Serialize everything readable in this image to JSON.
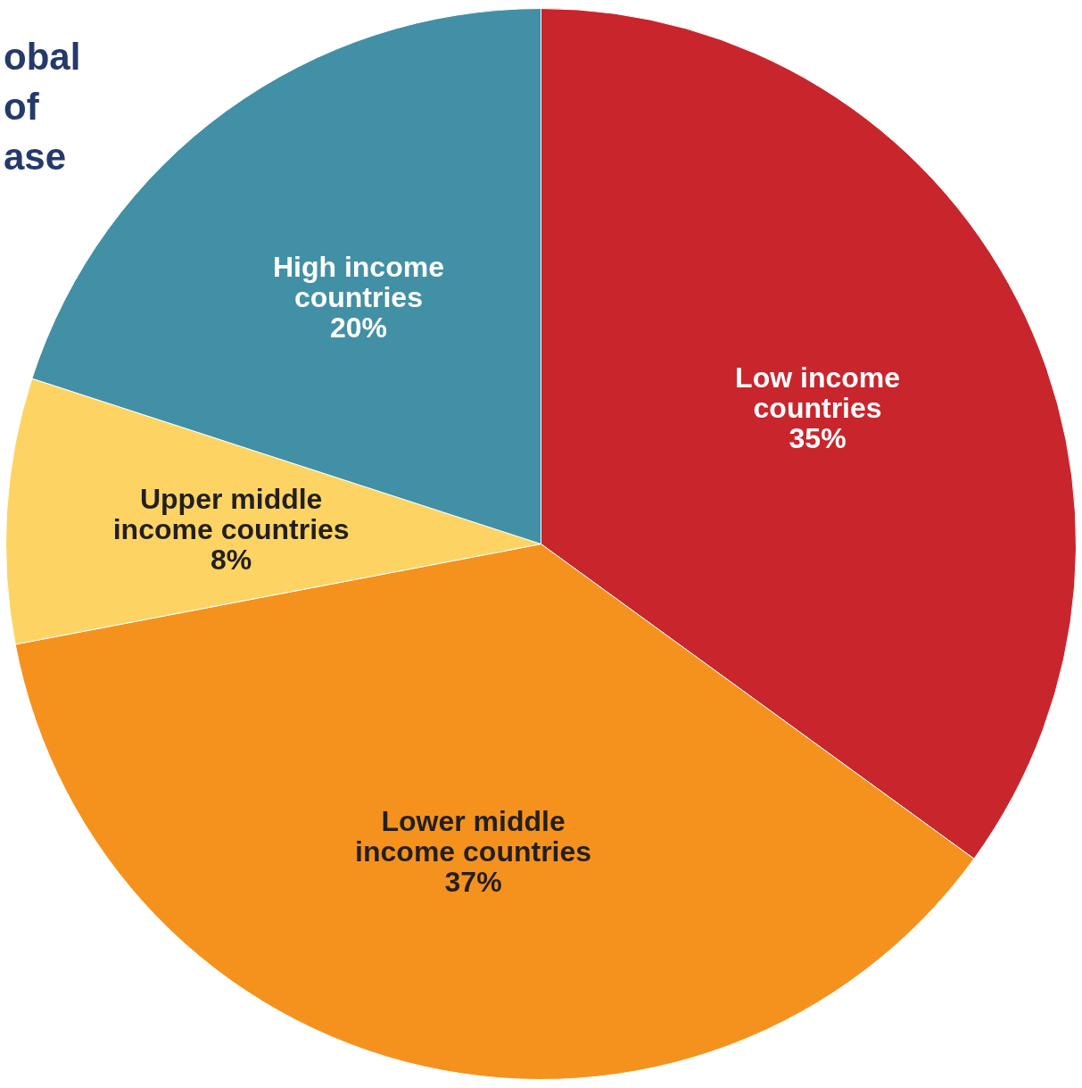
{
  "chart_data": {
    "type": "pie",
    "title": "obal\nof\nase",
    "categories": [
      "Low income countries",
      "Lower middle income countries",
      "Upper middle income countries",
      "High income countries"
    ],
    "values": [
      35,
      37,
      8,
      20
    ],
    "value_labels": [
      "35%",
      "37%",
      "8%",
      "20%"
    ],
    "colors": [
      "#c9252c",
      "#f5921e",
      "#fdd463",
      "#4290a5"
    ]
  }
}
